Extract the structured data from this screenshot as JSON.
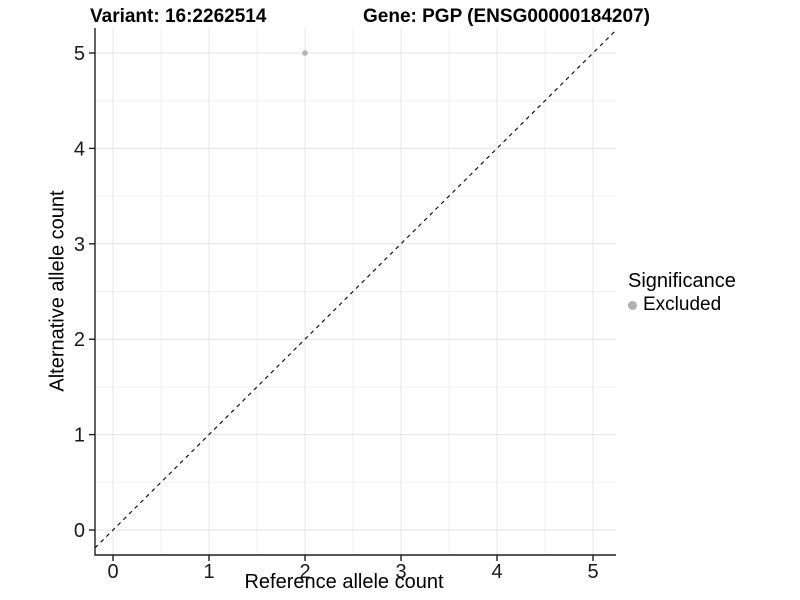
{
  "chart_data": {
    "type": "scatter",
    "title_left": "Variant: 16:2262514",
    "title_right": "Gene: PGP (ENSG00000184207)",
    "xlabel": "Reference allele count",
    "ylabel": "Alternative allele count",
    "xlim": [
      -0.25,
      5.25
    ],
    "ylim": [
      -0.25,
      5.25
    ],
    "x_ticks": [
      0,
      1,
      2,
      3,
      4,
      5
    ],
    "y_ticks": [
      0,
      1,
      2,
      3,
      4,
      5
    ],
    "grid": "on",
    "minor_grid_step": 0.5,
    "points": [
      {
        "x": 2,
        "y": 5,
        "significance": "Excluded"
      }
    ],
    "reference_line": {
      "equation": "y = x",
      "style": "dashed",
      "color": "#000000"
    },
    "legend": {
      "title": "Significance",
      "position": "right",
      "entries": [
        {
          "label": "Excluded",
          "color": "#b0b0b0"
        }
      ]
    },
    "colors": {
      "point": "#b3b3b3",
      "major_grid": "#e4e4e4",
      "minor_grid": "#f2f2f2",
      "axis_line": "#1f1f1f",
      "tick_label": "#1a1a1a",
      "panel_background": "#ffffff"
    }
  }
}
